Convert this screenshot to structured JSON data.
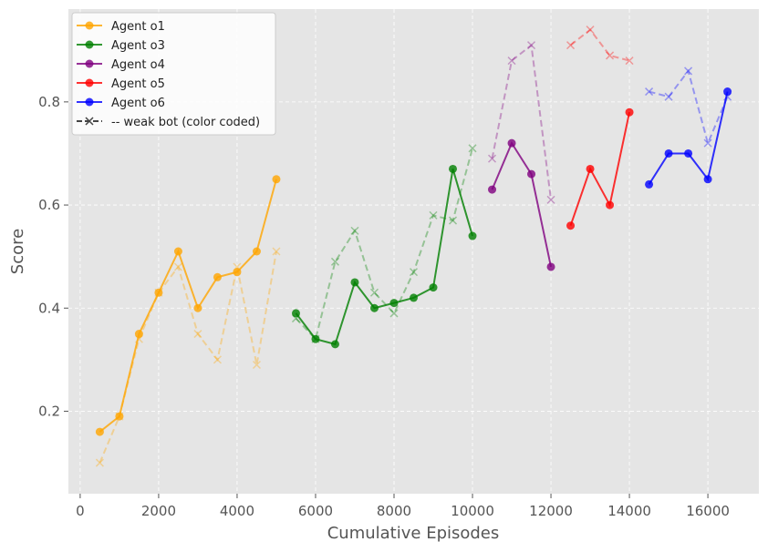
{
  "chart_data": {
    "type": "line",
    "xlabel": "Cumulative Episodes",
    "ylabel": "Score",
    "xlim": [
      -300,
      17300
    ],
    "ylim": [
      0.04,
      0.98
    ],
    "xticks": [
      0,
      2000,
      4000,
      6000,
      8000,
      10000,
      12000,
      14000,
      16000
    ],
    "yticks": [
      0.2,
      0.4,
      0.6,
      0.8
    ],
    "xtick_labels": [
      "0",
      "2000",
      "4000",
      "6000",
      "8000",
      "10000",
      "12000",
      "14000",
      "16000"
    ],
    "ytick_labels": [
      "0.2",
      "0.4",
      "0.6",
      "0.8"
    ],
    "grid": true,
    "legend_position": "top-left",
    "background": "#e5e5e5",
    "series": [
      {
        "name": "Agent o1",
        "color": "#ffa500",
        "x": [
          500,
          1000,
          1500,
          2000,
          2500,
          3000,
          3500,
          4000,
          4500,
          5000
        ],
        "values": [
          0.16,
          0.19,
          0.35,
          0.43,
          0.51,
          0.4,
          0.46,
          0.47,
          0.51,
          0.65
        ],
        "weak_bot": [
          0.1,
          0.19,
          0.34,
          0.43,
          0.48,
          0.35,
          0.3,
          0.48,
          0.29,
          0.51
        ]
      },
      {
        "name": "Agent o3",
        "color": "#008000",
        "x": [
          5500,
          6000,
          6500,
          7000,
          7500,
          8000,
          8500,
          9000,
          9500,
          10000
        ],
        "values": [
          0.39,
          0.34,
          0.33,
          0.45,
          0.4,
          0.41,
          0.42,
          0.44,
          0.67,
          0.54
        ],
        "weak_bot": [
          0.38,
          0.34,
          0.49,
          0.55,
          0.43,
          0.39,
          0.47,
          0.58,
          0.57,
          0.71
        ]
      },
      {
        "name": "Agent o4",
        "color": "#800080",
        "x": [
          10500,
          11000,
          11500,
          12000
        ],
        "values": [
          0.63,
          0.72,
          0.66,
          0.48
        ],
        "weak_bot": [
          0.69,
          0.88,
          0.91,
          0.61
        ]
      },
      {
        "name": "Agent o5",
        "color": "#ff0000",
        "x": [
          12500,
          13000,
          13500,
          14000
        ],
        "values": [
          0.56,
          0.67,
          0.6,
          0.78
        ],
        "weak_bot": [
          0.91,
          0.94,
          0.89,
          0.88
        ]
      },
      {
        "name": "Agent o6",
        "color": "#0000ff",
        "x": [
          14500,
          15000,
          15500,
          16000,
          16500
        ],
        "values": [
          0.64,
          0.7,
          0.7,
          0.65,
          0.82
        ],
        "weak_bot": [
          0.82,
          0.81,
          0.86,
          0.72,
          0.81
        ]
      }
    ],
    "legend_extra": "-- weak bot (color coded)"
  }
}
